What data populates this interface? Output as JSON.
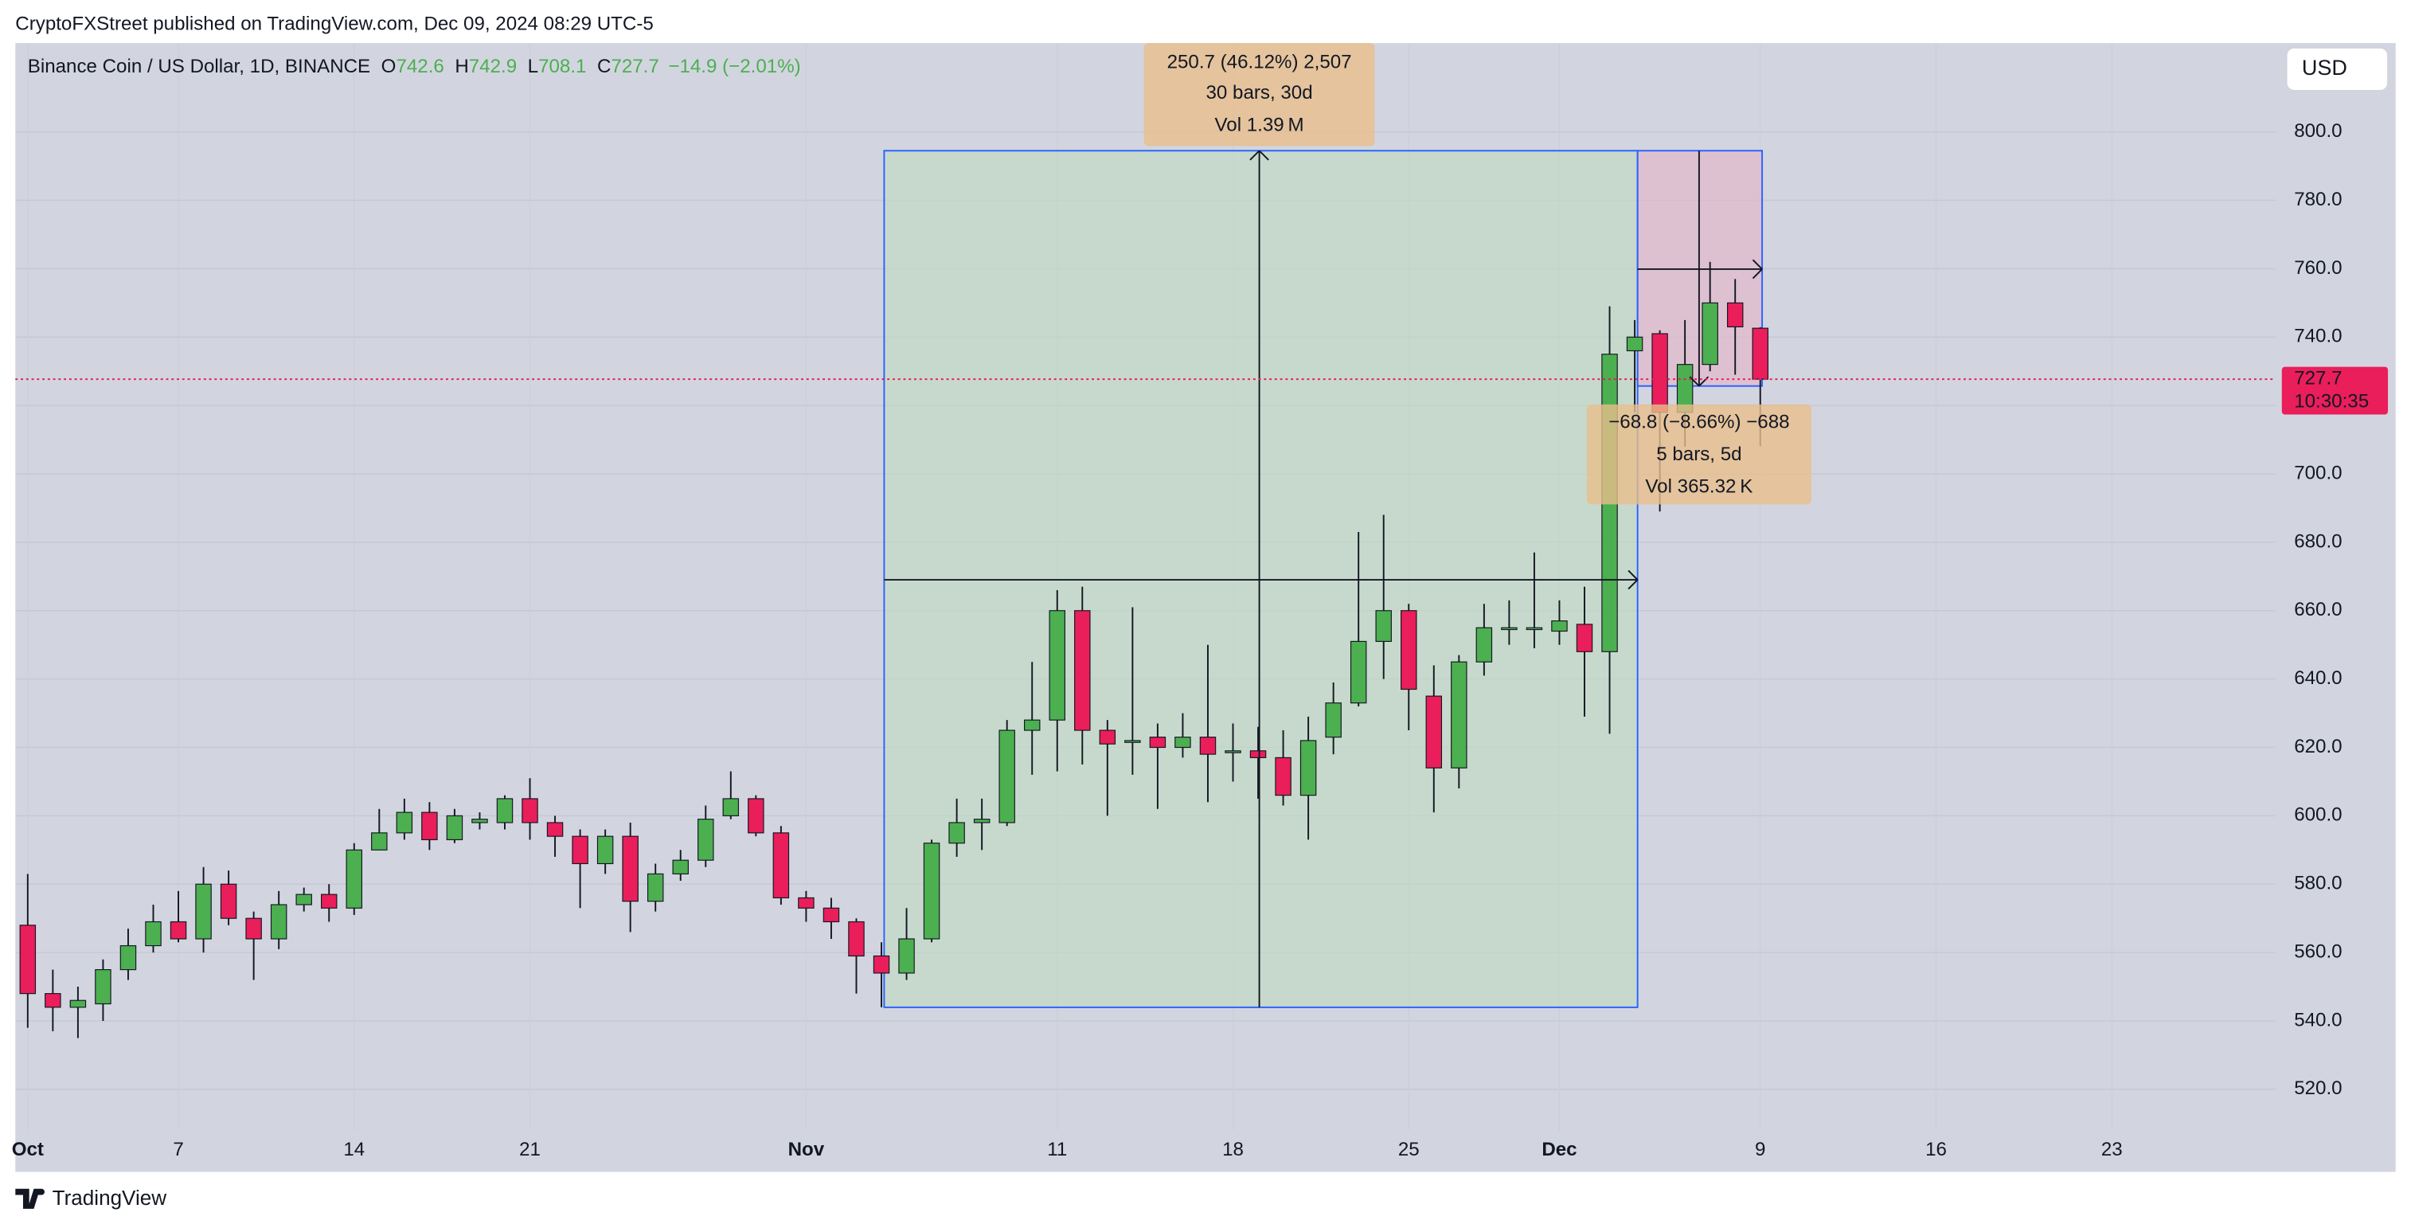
{
  "header": {
    "published": "CryptoFXStreet published on TradingView.com, Dec 09, 2024 08:29 UTC-5",
    "currency": "USD",
    "logo": "TradingView"
  },
  "chart_data": {
    "type": "candlestick",
    "title": "Binance Coin / US Dollar, 1D, BINANCE",
    "ohlc_legend": [
      {
        "label": "O",
        "value": "742.6"
      },
      {
        "label": "H",
        "value": "742.9"
      },
      {
        "label": "L",
        "value": "708.1"
      },
      {
        "label": "C",
        "value": "727.7"
      }
    ],
    "change": "−14.9 (−2.01%)",
    "x": [
      "2024-10-01",
      "2024-10-02",
      "2024-10-03",
      "2024-10-04",
      "2024-10-05",
      "2024-10-06",
      "2024-10-07",
      "2024-10-08",
      "2024-10-09",
      "2024-10-10",
      "2024-10-11",
      "2024-10-12",
      "2024-10-13",
      "2024-10-14",
      "2024-10-15",
      "2024-10-16",
      "2024-10-17",
      "2024-10-18",
      "2024-10-19",
      "2024-10-20",
      "2024-10-21",
      "2024-10-22",
      "2024-10-23",
      "2024-10-24",
      "2024-10-25",
      "2024-10-26",
      "2024-10-27",
      "2024-10-28",
      "2024-10-29",
      "2024-10-30",
      "2024-10-31",
      "2024-11-01",
      "2024-11-02",
      "2024-11-03",
      "2024-11-04",
      "2024-11-05",
      "2024-11-06",
      "2024-11-07",
      "2024-11-08",
      "2024-11-09",
      "2024-11-10",
      "2024-11-11",
      "2024-11-12",
      "2024-11-13",
      "2024-11-14",
      "2024-11-15",
      "2024-11-16",
      "2024-11-17",
      "2024-11-18",
      "2024-11-19",
      "2024-11-20",
      "2024-11-21",
      "2024-11-22",
      "2024-11-23",
      "2024-11-24",
      "2024-11-25",
      "2024-11-26",
      "2024-11-27",
      "2024-11-28",
      "2024-11-29",
      "2024-11-30",
      "2024-12-01",
      "2024-12-02",
      "2024-12-03",
      "2024-12-04",
      "2024-12-05",
      "2024-12-06",
      "2024-12-07",
      "2024-12-08",
      "2024-12-09"
    ],
    "open": [
      568,
      548,
      544,
      545,
      555,
      562,
      569,
      564,
      580,
      570,
      564,
      574,
      577,
      573,
      590,
      595,
      601,
      593,
      598,
      598,
      605,
      598,
      594,
      586,
      594,
      575,
      583,
      587,
      600,
      605,
      595,
      576,
      573,
      569,
      559,
      554,
      564,
      592,
      598,
      598,
      625,
      628,
      660,
      625,
      622,
      623,
      620,
      623,
      619,
      619,
      617,
      606,
      623,
      633,
      651,
      660,
      635,
      614,
      645,
      655,
      655,
      654,
      656,
      648,
      736,
      741,
      718,
      732,
      750,
      742.6
    ],
    "high": [
      583,
      555,
      550,
      558,
      567,
      574,
      578,
      585,
      584,
      572,
      578,
      579,
      580,
      592,
      602,
      605,
      604,
      602,
      601,
      606,
      611,
      600,
      596,
      596,
      598,
      586,
      590,
      603,
      613,
      606,
      597,
      578,
      576,
      570,
      563,
      573,
      593,
      605,
      605,
      628,
      645,
      666,
      667,
      628,
      661,
      627,
      630,
      650,
      627,
      626,
      625,
      629,
      639,
      683,
      688,
      662,
      644,
      647,
      662,
      663,
      677,
      663,
      667,
      749,
      745,
      742,
      745,
      762,
      757,
      742.9
    ],
    "low": [
      538,
      537,
      535,
      540,
      552,
      560,
      563,
      560,
      568,
      552,
      561,
      572,
      569,
      571,
      590,
      593,
      590,
      592,
      596,
      596,
      593,
      588,
      573,
      583,
      566,
      572,
      581,
      585,
      599,
      594,
      574,
      569,
      564,
      548,
      544,
      552,
      563,
      588,
      590,
      597,
      612,
      613,
      615,
      600,
      612,
      602,
      617,
      604,
      610,
      605,
      603,
      593,
      618,
      632,
      640,
      625,
      601,
      608,
      641,
      650,
      649,
      650,
      629,
      624,
      718,
      689,
      708,
      730,
      729,
      708.1
    ],
    "close": [
      548,
      544,
      546,
      555,
      562,
      569,
      564,
      580,
      570,
      564,
      574,
      577,
      573,
      590,
      595,
      601,
      593,
      600,
      599,
      605,
      598,
      594,
      586,
      594,
      575,
      583,
      587,
      599,
      605,
      595,
      576,
      573,
      569,
      559,
      554,
      564,
      592,
      598,
      599,
      625,
      628,
      660,
      625,
      621,
      622,
      620,
      623,
      618,
      619,
      617,
      606,
      622,
      633,
      651,
      660,
      637,
      614,
      645,
      655,
      655,
      655,
      657,
      648,
      735,
      740,
      718,
      732,
      750,
      743,
      727.7
    ],
    "up_color": "#4caf50",
    "down_color": "#e91e5a",
    "xlim": [
      "2024-09-30",
      "2024-12-29"
    ],
    "xticks": [
      {
        "value": "2024-10-01",
        "label": "Oct"
      },
      {
        "value": "2024-10-07",
        "label": "7"
      },
      {
        "value": "2024-10-14",
        "label": "14"
      },
      {
        "value": "2024-10-21",
        "label": "21"
      },
      {
        "value": "2024-11-01",
        "label": "Nov"
      },
      {
        "value": "2024-11-11",
        "label": "11"
      },
      {
        "value": "2024-11-18",
        "label": "18"
      },
      {
        "value": "2024-11-25",
        "label": "25"
      },
      {
        "value": "2024-12-01",
        "label": "Dec"
      },
      {
        "value": "2024-12-09",
        "label": "9"
      },
      {
        "value": "2024-12-16",
        "label": "16"
      },
      {
        "value": "2024-12-23",
        "label": "23"
      }
    ],
    "ylim": [
      508,
      826
    ],
    "yticks": [
      {
        "value": 520,
        "label": "520.0"
      },
      {
        "value": 540,
        "label": "540.0"
      },
      {
        "value": 560,
        "label": "560.0"
      },
      {
        "value": 580,
        "label": "580.0"
      },
      {
        "value": 600,
        "label": "600.0"
      },
      {
        "value": 620,
        "label": "620.0"
      },
      {
        "value": 640,
        "label": "640.0"
      },
      {
        "value": 660,
        "label": "660.0"
      },
      {
        "value": 680,
        "label": "680.0"
      },
      {
        "value": 700,
        "label": "700.0"
      },
      {
        "value": 720,
        "label": "720.0"
      },
      {
        "value": 740,
        "label": "740.0"
      },
      {
        "value": 760,
        "label": "760.0"
      },
      {
        "value": 780,
        "label": "780.0"
      },
      {
        "value": 800,
        "label": "800.0"
      }
    ],
    "grid": true,
    "last_price": {
      "label": "727.7",
      "countdown": "10:30:35"
    },
    "annotations": [
      {
        "lines": [
          "250.7 (46.12%) 2,507",
          "30 bars, 30d",
          "Vol 1.39 M"
        ]
      },
      {
        "lines": [
          "−68.8 (−8.66%) −688",
          "5 bars, 5d",
          "Vol 365.32 K"
        ]
      }
    ]
  }
}
